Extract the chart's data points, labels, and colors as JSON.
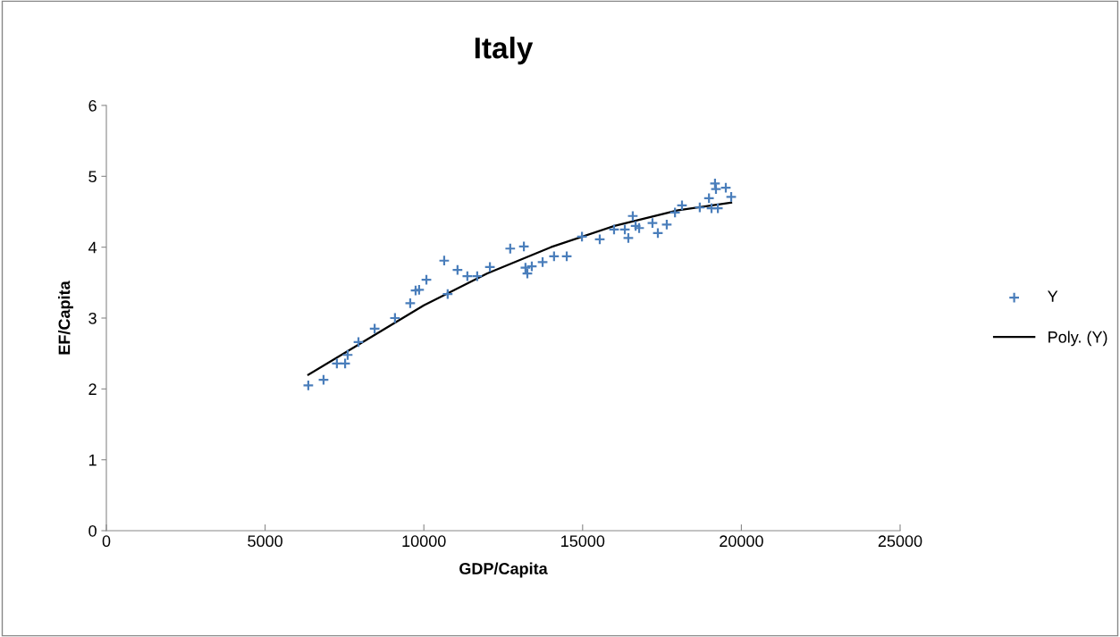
{
  "chart_data": {
    "type": "scatter",
    "title": "Italy",
    "xlabel": "GDP/Capita",
    "ylabel": "EF/Capita",
    "xlim": [
      0,
      25000
    ],
    "xticks": [
      0,
      5000,
      10000,
      15000,
      20000,
      25000
    ],
    "ylim": [
      0,
      6
    ],
    "yticks": [
      0,
      1,
      2,
      3,
      4,
      5,
      6
    ],
    "grid": false,
    "legend": "right",
    "series": [
      {
        "name": "Y",
        "marker": "cross",
        "color": "#4a7ebb",
        "x": [
          6360,
          6840,
          7260,
          7520,
          7600,
          7940,
          8450,
          9090,
          9570,
          9740,
          9850,
          10080,
          10640,
          10750,
          11060,
          11370,
          11680,
          12080,
          12720,
          13150,
          13200,
          13260,
          13400,
          13740,
          14100,
          14500,
          14980,
          15540,
          15990,
          16330,
          16440,
          16580,
          16670,
          16780,
          17200,
          17370,
          17650,
          17910,
          18130,
          18690,
          18980,
          19060,
          19170,
          19200,
          19260,
          19510,
          19680
        ],
        "values": [
          2.05,
          2.13,
          2.36,
          2.36,
          2.48,
          2.66,
          2.85,
          3.0,
          3.21,
          3.39,
          3.4,
          3.54,
          3.81,
          3.34,
          3.68,
          3.59,
          3.59,
          3.72,
          3.98,
          4.01,
          3.71,
          3.63,
          3.73,
          3.79,
          3.87,
          3.87,
          4.15,
          4.11,
          4.25,
          4.25,
          4.13,
          4.44,
          4.3,
          4.27,
          4.34,
          4.2,
          4.32,
          4.49,
          4.59,
          4.56,
          4.69,
          4.55,
          4.9,
          4.82,
          4.55,
          4.84,
          4.71
        ]
      },
      {
        "name": "Poly. (Y)",
        "type": "line",
        "color": "#000000",
        "line_style": "solid",
        "x": [
          6360,
          8000,
          10000,
          12000,
          14000,
          16000,
          18000,
          19680
        ],
        "values": [
          2.2,
          2.64,
          3.18,
          3.63,
          4.0,
          4.3,
          4.52,
          4.63
        ]
      }
    ]
  }
}
